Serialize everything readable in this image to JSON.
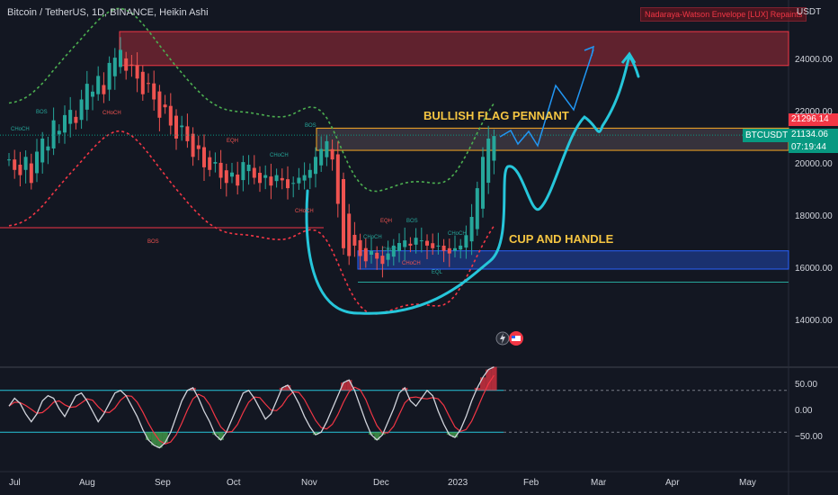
{
  "header": {
    "title": "Bitcoin / TetherUS, 1D, BINANCE, Heikin Ashi",
    "indicator_badge": "Nadaraya-Watson Envelope [LUX] Repaints",
    "currency": "USDT"
  },
  "price_tags": {
    "upper": "21296.14",
    "symbol": "BTCUSDT",
    "last": "21134.06",
    "countdown": "07:19:44"
  },
  "annotations": {
    "bullish": "BULLISH FLAG PENNANT",
    "cup": "CUP AND HANDLE"
  },
  "smc_labels": [
    "BOS",
    "CHoCH",
    "CHoCH",
    "BOS",
    "BOS",
    "EQH",
    "CHoCH",
    "CHoCH",
    "CHoCH",
    "EQH",
    "BOS",
    "CHoCH",
    "CHoCH",
    "CHoCH",
    "EQL"
  ],
  "colors": {
    "background": "#131722",
    "up": "#26a69a",
    "down": "#ef5350",
    "envelope_upper": "#4caf50",
    "envelope_lower": "#f23645",
    "cup_drawing": "#26c6da",
    "projection": "#2196f3",
    "annotation": "#f5c542"
  },
  "chart_data": [
    {
      "type": "candlestick",
      "title": "Bitcoin / TetherUS, 1D, BINANCE, Heikin Ashi",
      "x_tick_labels": [
        "Jul",
        "Aug",
        "Sep",
        "Oct",
        "Nov",
        "Dec",
        "2023",
        "Feb",
        "Mar",
        "Apr",
        "May"
      ],
      "y_tick_labels": [
        "24000.00",
        "22000.00",
        "20000.00",
        "18000.00",
        "16000.00",
        "14000.00"
      ],
      "ylim": [
        13000,
        25500
      ],
      "last_price": 21134.06,
      "upper_price": 21296.14,
      "zones": [
        {
          "kind": "supply",
          "from": 23800,
          "to": 25100
        },
        {
          "kind": "supply",
          "from": 20550,
          "to": 21400
        },
        {
          "kind": "demand",
          "from": 16000,
          "to": 16700
        }
      ],
      "levels": [
        18000,
        15500
      ],
      "closes": [
        20200,
        19800,
        19600,
        20300,
        19300,
        20500,
        21000,
        20700,
        21700,
        21300,
        21900,
        22100,
        21600,
        22500,
        23100,
        22800,
        23400,
        22700,
        23900,
        24100,
        24400,
        23600,
        23800,
        23300,
        22700,
        23100,
        22500,
        21800,
        22200,
        21500,
        21000,
        21500,
        20900,
        20300,
        20600,
        19900,
        19800,
        20100,
        19500,
        19300,
        19700,
        19200,
        20100,
        20000,
        19500,
        19300,
        19600,
        19200,
        19600,
        19400,
        19100,
        19300,
        19500,
        19600,
        19800,
        20300,
        20600,
        20900,
        20200,
        18500,
        16800,
        16500,
        16900,
        16500,
        16300,
        16700,
        16400,
        16200,
        16600,
        16900,
        17000,
        17100,
        16900,
        17200,
        17100,
        16900,
        16800,
        16900,
        16700,
        16600,
        16800,
        16900,
        17300,
        18000,
        19100,
        20300,
        21000,
        21100
      ],
      "bars_per_month": 14
    },
    {
      "type": "line",
      "name": "oscillator",
      "y_tick_labels": [
        "50.00",
        "0.00",
        "−50.00"
      ],
      "ylim": [
        -85,
        90
      ],
      "levels": [
        40,
        -40
      ],
      "values": [
        10,
        25,
        15,
        -5,
        -20,
        -5,
        20,
        30,
        25,
        5,
        -10,
        10,
        30,
        35,
        20,
        0,
        -20,
        -5,
        15,
        35,
        40,
        30,
        10,
        -10,
        -35,
        -55,
        -65,
        -70,
        -60,
        -40,
        -10,
        20,
        40,
        45,
        25,
        0,
        -20,
        -45,
        -55,
        -40,
        -15,
        10,
        35,
        40,
        25,
        5,
        -15,
        -5,
        20,
        45,
        50,
        35,
        15,
        -10,
        -30,
        -45,
        -40,
        -20,
        5,
        30,
        55,
        60,
        40,
        10,
        -20,
        -45,
        -55,
        -45,
        -20,
        5,
        35,
        45,
        20,
        10,
        25,
        40,
        30,
        0,
        -25,
        -45,
        -50,
        -35,
        -10,
        20,
        45,
        65,
        80,
        85
      ]
    }
  ]
}
